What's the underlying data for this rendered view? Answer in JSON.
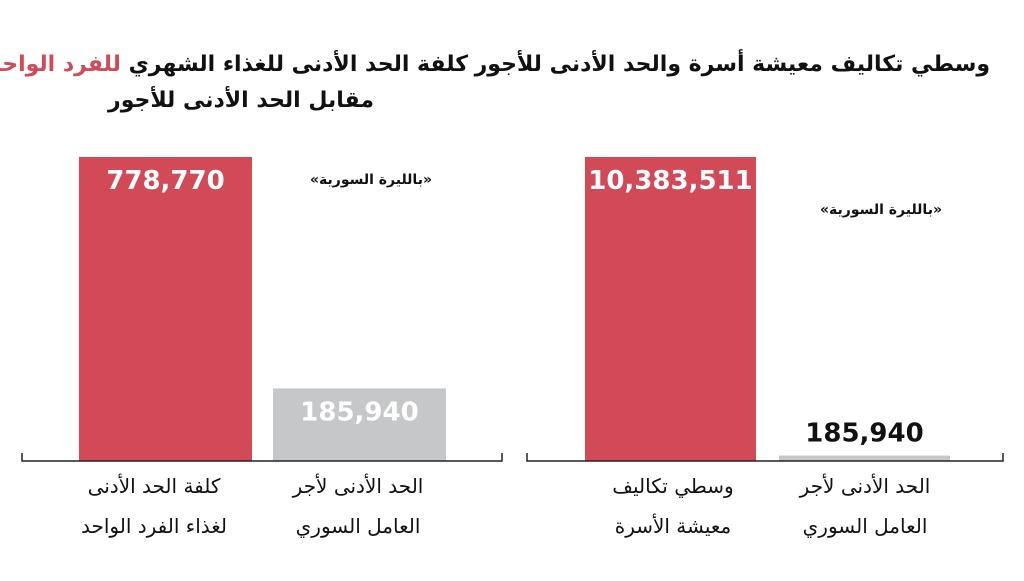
{
  "colors": {
    "accent": "#d24a58",
    "bar_primary": "#d24a58",
    "bar_secondary": "#c6c7c9",
    "text": "#111111",
    "axis": "#222222"
  },
  "charts": {
    "right": {
      "title": "وسطي تكاليف معيشة أسرة والحد الأدنى للأجور",
      "currency_note": "«بالليرة السورية»",
      "categories": [
        {
          "line1": "وسطي تكاليف",
          "line2": "معيشة الأسرة"
        },
        {
          "line1": "الحد الأدنى لأجر",
          "line2": "العامل السوري"
        }
      ]
    },
    "left": {
      "title_line1_prefix": "كلفة الحد الأدنى للغذاء الشهري",
      "title_line1_accent": "للفرد الواحد",
      "title_line2": "مقابل الحد الأدنى للأجور",
      "currency_note": "«بالليرة السورية»",
      "categories": [
        {
          "line1": "كلفة الحد الأدنى",
          "line2": "لغذاء الفرد الواحد"
        },
        {
          "line1": "الحد الأدنى لأجر",
          "line2": "العامل السوري"
        }
      ]
    }
  },
  "chart_data": [
    {
      "type": "bar",
      "title": "وسطي تكاليف معيشة أسرة والحد الأدنى للأجور",
      "categories": [
        "وسطي تكاليف معيشة الأسرة",
        "الحد الأدنى لأجر العامل السوري"
      ],
      "values": [
        10383511,
        185940
      ],
      "value_labels": [
        "10,383,511",
        "185,940"
      ],
      "unit": "«بالليرة السورية»",
      "bar_colors": [
        "#d24a58",
        "#c6c7c9"
      ],
      "ylim": [
        0,
        10383511
      ],
      "grid": false
    },
    {
      "type": "bar",
      "title": "كلفة الحد الأدنى للغذاء الشهري للفرد الواحد مقابل الحد الأدنى للأجور",
      "categories": [
        "كلفة الحد الأدنى لغذاء الفرد الواحد",
        "الحد الأدنى لأجر العامل السوري"
      ],
      "values": [
        778770,
        185940
      ],
      "value_labels": [
        "778,770",
        "185,940"
      ],
      "unit": "«بالليرة السورية»",
      "bar_colors": [
        "#d24a58",
        "#c6c7c9"
      ],
      "ylim": [
        0,
        778770
      ],
      "grid": false
    }
  ]
}
